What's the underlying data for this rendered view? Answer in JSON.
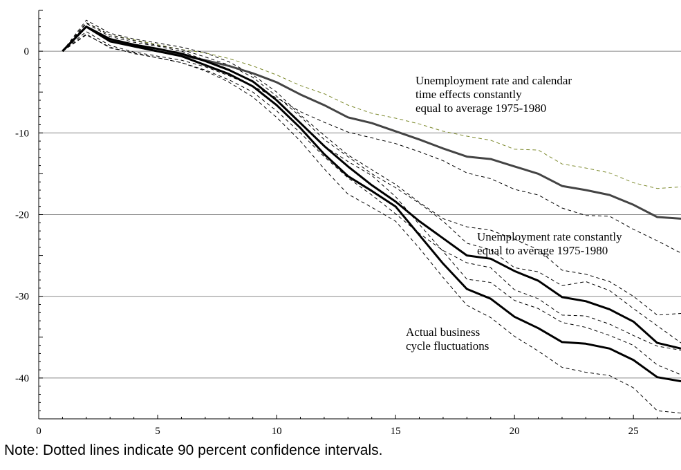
{
  "chart_data": {
    "type": "line",
    "title": "",
    "xlabel": "",
    "ylabel": "",
    "xlim": [
      0,
      27
    ],
    "ylim": [
      -45,
      5
    ],
    "x_ticks": [
      0,
      5,
      10,
      15,
      20,
      25
    ],
    "y_ticks": [
      0,
      -10,
      -20,
      -30,
      -40
    ],
    "x_tick_labels": [
      "0",
      "5",
      "10",
      "15",
      "20",
      "25"
    ],
    "y_tick_labels": [
      "0",
      "-10",
      "-20",
      "-30",
      "-40"
    ],
    "grid": "horizontal",
    "x": [
      1,
      2,
      3,
      4,
      5,
      6,
      7,
      8,
      9,
      10,
      11,
      12,
      13,
      14,
      15,
      16,
      17,
      18,
      19,
      20,
      21,
      22,
      23,
      24,
      25,
      26,
      27
    ],
    "series": [
      {
        "style": "solid-gray",
        "color": "#444444",
        "values": [
          0,
          3.0,
          1.3,
          0.6,
          0.0,
          -0.5,
          -1.1,
          -1.8,
          -2.7,
          -3.8,
          -5.3,
          -6.6,
          -8.1,
          -8.8,
          -9.8,
          -10.8,
          -11.9,
          -12.9,
          -13.2,
          -14.1,
          -15.0,
          -16.5,
          -17.0,
          -17.6,
          -18.8,
          -20.3,
          -20.5
        ]
      },
      {
        "style": "solid-black",
        "color": "#000000",
        "values": [
          0,
          3.0,
          1.5,
          0.8,
          0.3,
          -0.3,
          -1.2,
          -2.3,
          -3.7,
          -6.0,
          -8.8,
          -11.6,
          -14.1,
          -16.4,
          -18.4,
          -20.8,
          -22.9,
          -25.0,
          -25.4,
          -26.9,
          -28.1,
          -30.1,
          -30.6,
          -31.6,
          -33.1,
          -35.7,
          -36.4
        ]
      },
      {
        "style": "solid-black",
        "color": "#000000",
        "values": [
          0,
          3.0,
          1.2,
          0.6,
          0.0,
          -0.6,
          -1.7,
          -2.8,
          -4.3,
          -6.6,
          -9.4,
          -12.6,
          -15.3,
          -17.1,
          -19.0,
          -22.5,
          -26.0,
          -29.1,
          -30.3,
          -32.5,
          -33.9,
          -35.6,
          -35.8,
          -36.4,
          -37.8,
          -39.9,
          -40.4
        ]
      },
      {
        "style": "dashed-olive",
        "color": "#7d8a2e",
        "values": [
          0,
          3.5,
          2.0,
          1.4,
          0.8,
          0.2,
          -0.2,
          -0.9,
          -1.8,
          -2.9,
          -4.2,
          -5.2,
          -6.6,
          -7.6,
          -8.2,
          -8.9,
          -9.8,
          -10.4,
          -10.9,
          -12.0,
          -12.1,
          -13.8,
          -14.3,
          -14.9,
          -16.1,
          -16.8,
          -16.6
        ]
      },
      {
        "style": "dashed-black",
        "color": "#000000",
        "values": [
          0,
          2.4,
          0.7,
          -0.1,
          -0.6,
          -1.1,
          -1.9,
          -3.0,
          -4.3,
          -5.7,
          -7.4,
          -8.7,
          -9.9,
          -10.6,
          -11.3,
          -12.3,
          -13.4,
          -14.9,
          -15.6,
          -16.9,
          -17.6,
          -19.2,
          -20.1,
          -20.2,
          -21.8,
          -23.2,
          -24.7
        ]
      },
      {
        "style": "dashed-black",
        "color": "#000000",
        "values": [
          0,
          3.8,
          2.2,
          1.5,
          1.0,
          0.5,
          -0.2,
          -1.3,
          -2.9,
          -5.0,
          -7.8,
          -10.3,
          -12.7,
          -14.5,
          -16.3,
          -18.5,
          -20.5,
          -21.5,
          -21.9,
          -23.0,
          -24.3,
          -26.8,
          -27.3,
          -28.2,
          -30.0,
          -32.3,
          -32.1
        ]
      },
      {
        "style": "dashed-black",
        "color": "#000000",
        "values": [
          0,
          2.0,
          0.5,
          -0.3,
          -0.8,
          -1.4,
          -2.3,
          -3.5,
          -5.0,
          -7.3,
          -10.0,
          -12.9,
          -15.5,
          -17.6,
          -19.9,
          -22.3,
          -24.4,
          -25.9,
          -26.5,
          -29.2,
          -30.3,
          -32.3,
          -32.4,
          -33.4,
          -34.8,
          -36.1,
          -36.6
        ]
      },
      {
        "style": "dashed-black",
        "color": "#000000",
        "values": [
          0,
          3.5,
          2.0,
          1.3,
          0.7,
          0.2,
          -0.7,
          -1.7,
          -3.2,
          -5.5,
          -8.0,
          -10.8,
          -12.9,
          -15.0,
          -16.7,
          -18.6,
          -20.8,
          -23.5,
          -24.3,
          -26.5,
          -27.0,
          -28.7,
          -28.2,
          -29.3,
          -31.5,
          -33.6,
          -35.7
        ]
      },
      {
        "style": "dashed-black",
        "color": "#000000",
        "values": [
          0,
          3.4,
          1.8,
          1.1,
          0.6,
          0.0,
          -1.1,
          -2.2,
          -3.8,
          -6.0,
          -8.8,
          -11.6,
          -13.5,
          -15.2,
          -17.8,
          -21.2,
          -24.5,
          -27.9,
          -28.3,
          -30.5,
          -31.5,
          -33.2,
          -33.8,
          -34.8,
          -36.0,
          -38.4,
          -39.6
        ]
      },
      {
        "style": "dashed-black",
        "color": "#000000",
        "values": [
          0,
          2.1,
          0.4,
          -0.2,
          -0.8,
          -1.4,
          -2.4,
          -3.8,
          -5.6,
          -8.1,
          -11.0,
          -14.4,
          -17.5,
          -19.1,
          -20.8,
          -24.1,
          -27.7,
          -31.1,
          -32.6,
          -34.9,
          -36.7,
          -38.7,
          -39.3,
          -39.7,
          -41.2,
          -44.0,
          -44.3
        ]
      }
    ],
    "annotations": [
      {
        "lines": [
          "Unemployment rate and calendar",
          "time effects constantly",
          "equal to average 1975-1980"
        ]
      },
      {
        "lines": [
          "Unemployment rate constantly",
          "equal to average 1975-1980"
        ]
      },
      {
        "lines": [
          "Actual business",
          "cycle fluctuations"
        ]
      }
    ]
  },
  "note": "Note: Dotted lines indicate 90 percent confidence intervals."
}
